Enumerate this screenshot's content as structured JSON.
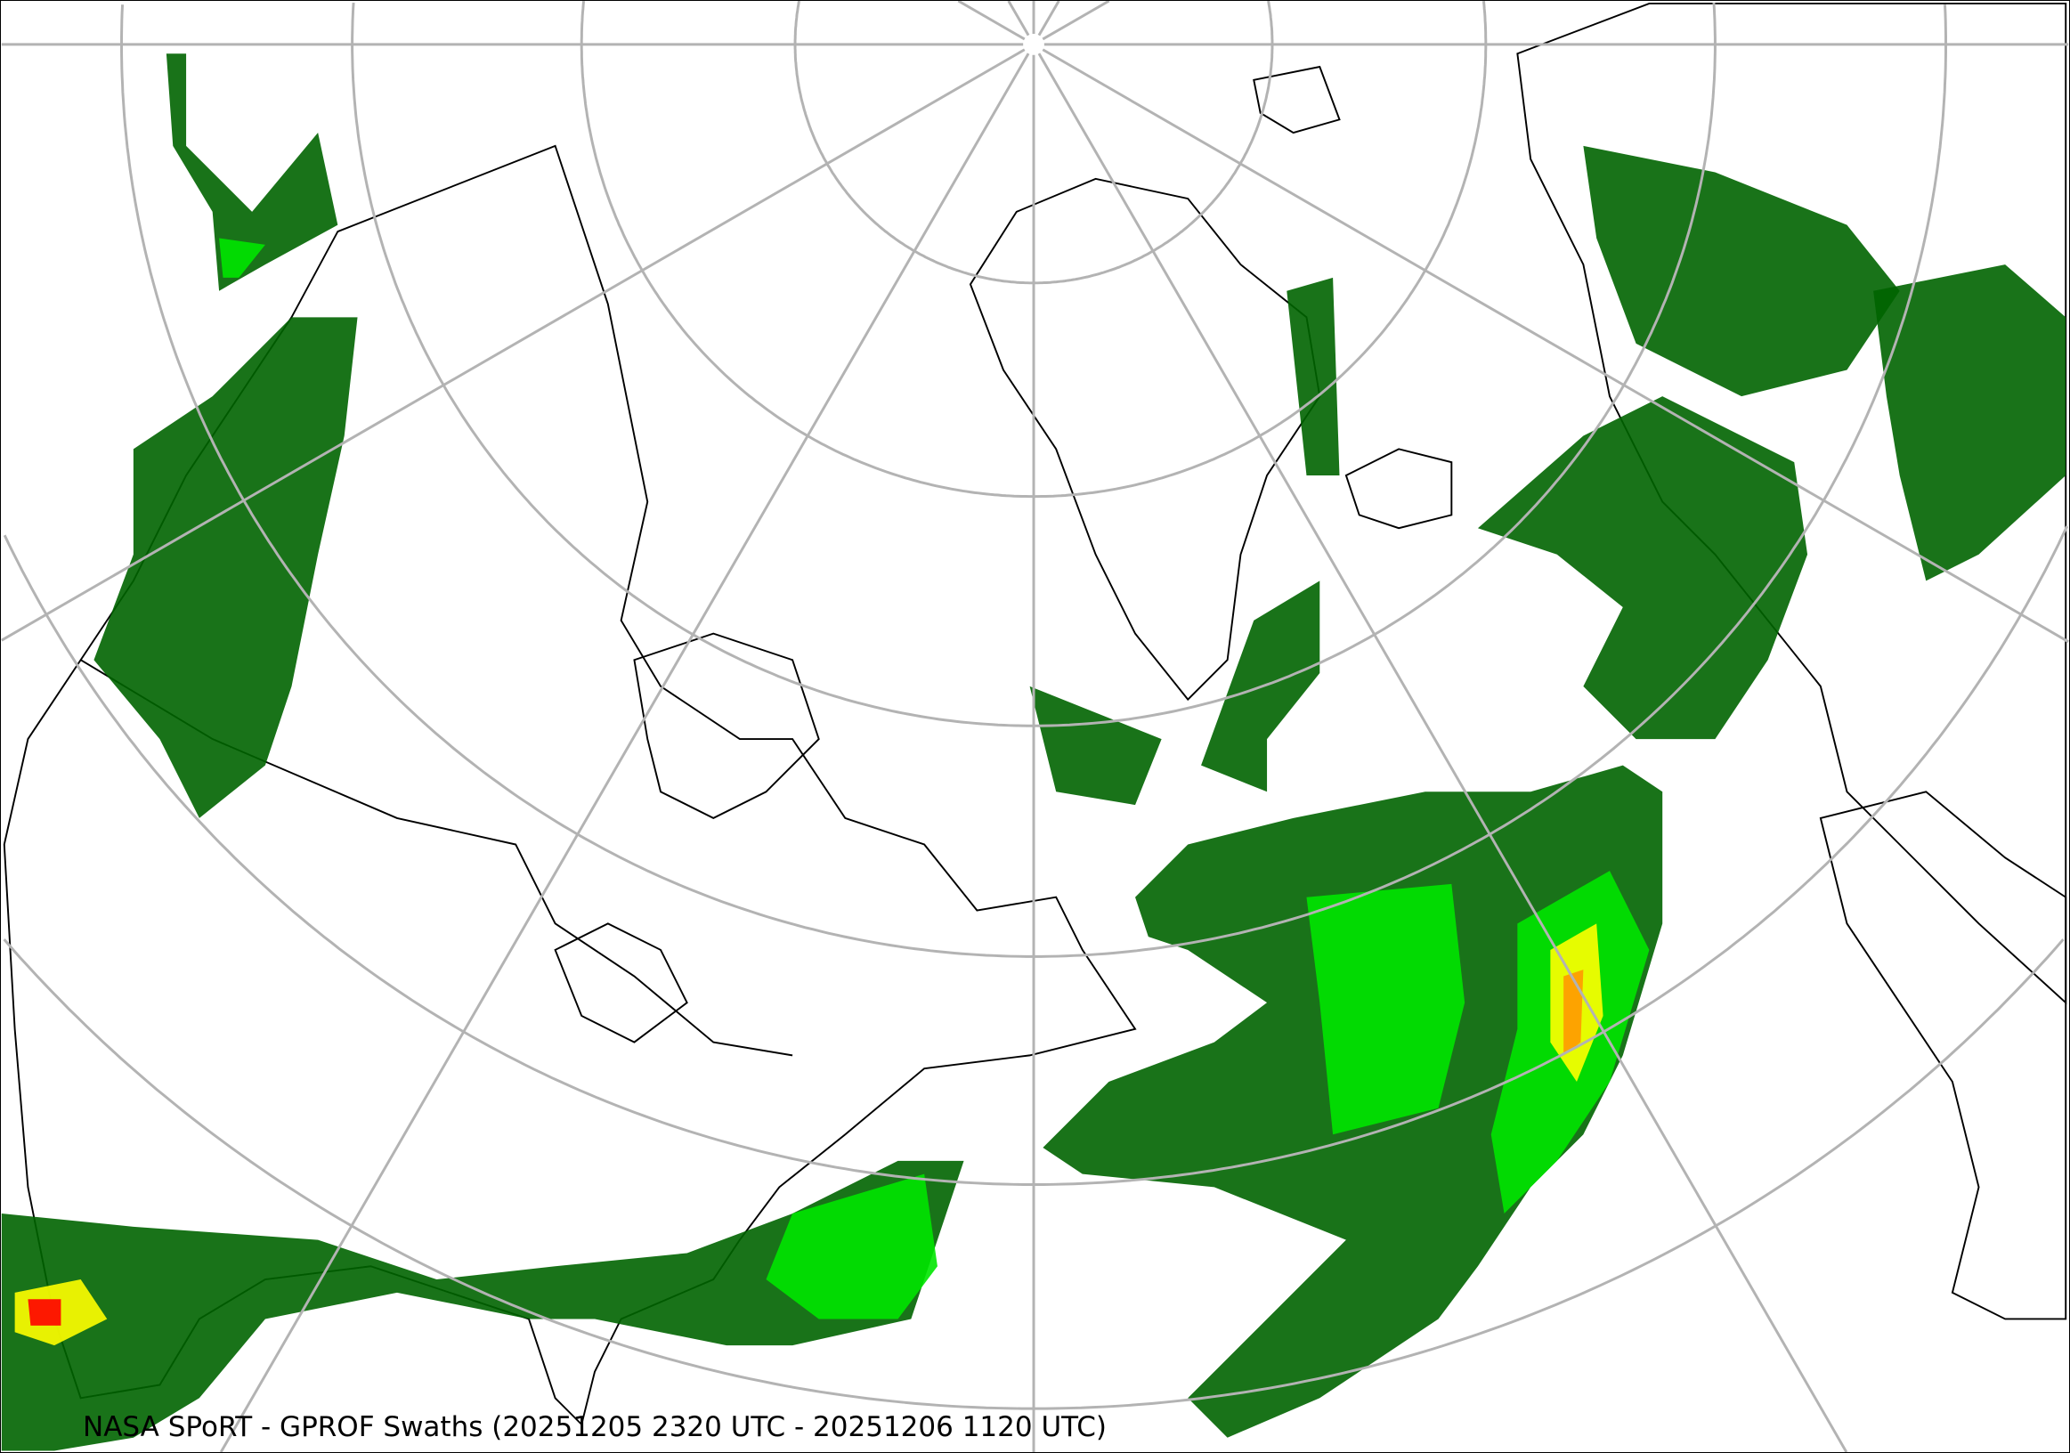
{
  "caption": "NASA SPoRT - GPROF Swaths (20251205 2320 UTC - 20251206 1120 UTC)",
  "map": {
    "projection": "north polar stereographic",
    "graticule_color": "#b3b3b3",
    "coastline_color": "#000000",
    "background": "#ffffff",
    "precip_colors": {
      "very_light": "#006400",
      "light": "#2e9e2e",
      "moderate": "#00e600",
      "heavy": "#ccff33",
      "very_heavy": "#ffff00",
      "intense": "#ff9900",
      "extreme": "#ff0000"
    }
  }
}
